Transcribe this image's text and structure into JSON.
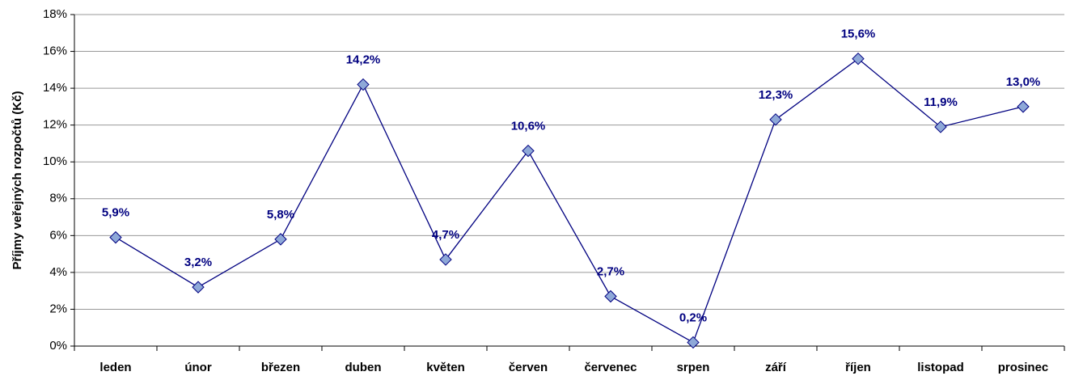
{
  "chart_data": {
    "type": "line",
    "y_axis_label": "Příjmy veřejných rozpočtů (Kč)",
    "categories": [
      "leden",
      "únor",
      "březen",
      "duben",
      "květen",
      "červen",
      "červenec",
      "srpen",
      "září",
      "říjen",
      "listopad",
      "prosinec"
    ],
    "series": [
      {
        "name": null,
        "color": "#000080",
        "marker_color": "#8ea8d8",
        "values": [
          5.9,
          3.2,
          5.8,
          14.2,
          4.7,
          10.6,
          2.7,
          0.2,
          12.3,
          15.6,
          11.9,
          13.0
        ],
        "value_labels": [
          "5,9%",
          "3,2%",
          "5,8%",
          "14,2%",
          "4,7%",
          "10,6%",
          "2,7%",
          "0,2%",
          "12,3%",
          "15,6%",
          "11,9%",
          "13,0%"
        ]
      }
    ],
    "ylim": [
      0,
      18
    ],
    "yticks": [
      {
        "value": 0,
        "label": "0%"
      },
      {
        "value": 2,
        "label": "2%"
      },
      {
        "value": 4,
        "label": "4%"
      },
      {
        "value": 6,
        "label": "6%"
      },
      {
        "value": 8,
        "label": "8%"
      },
      {
        "value": 10,
        "label": "10%"
      },
      {
        "value": 12,
        "label": "12%"
      },
      {
        "value": 14,
        "label": "14%"
      },
      {
        "value": 16,
        "label": "16%"
      },
      {
        "value": 18,
        "label": "18%"
      }
    ],
    "grid": true
  }
}
